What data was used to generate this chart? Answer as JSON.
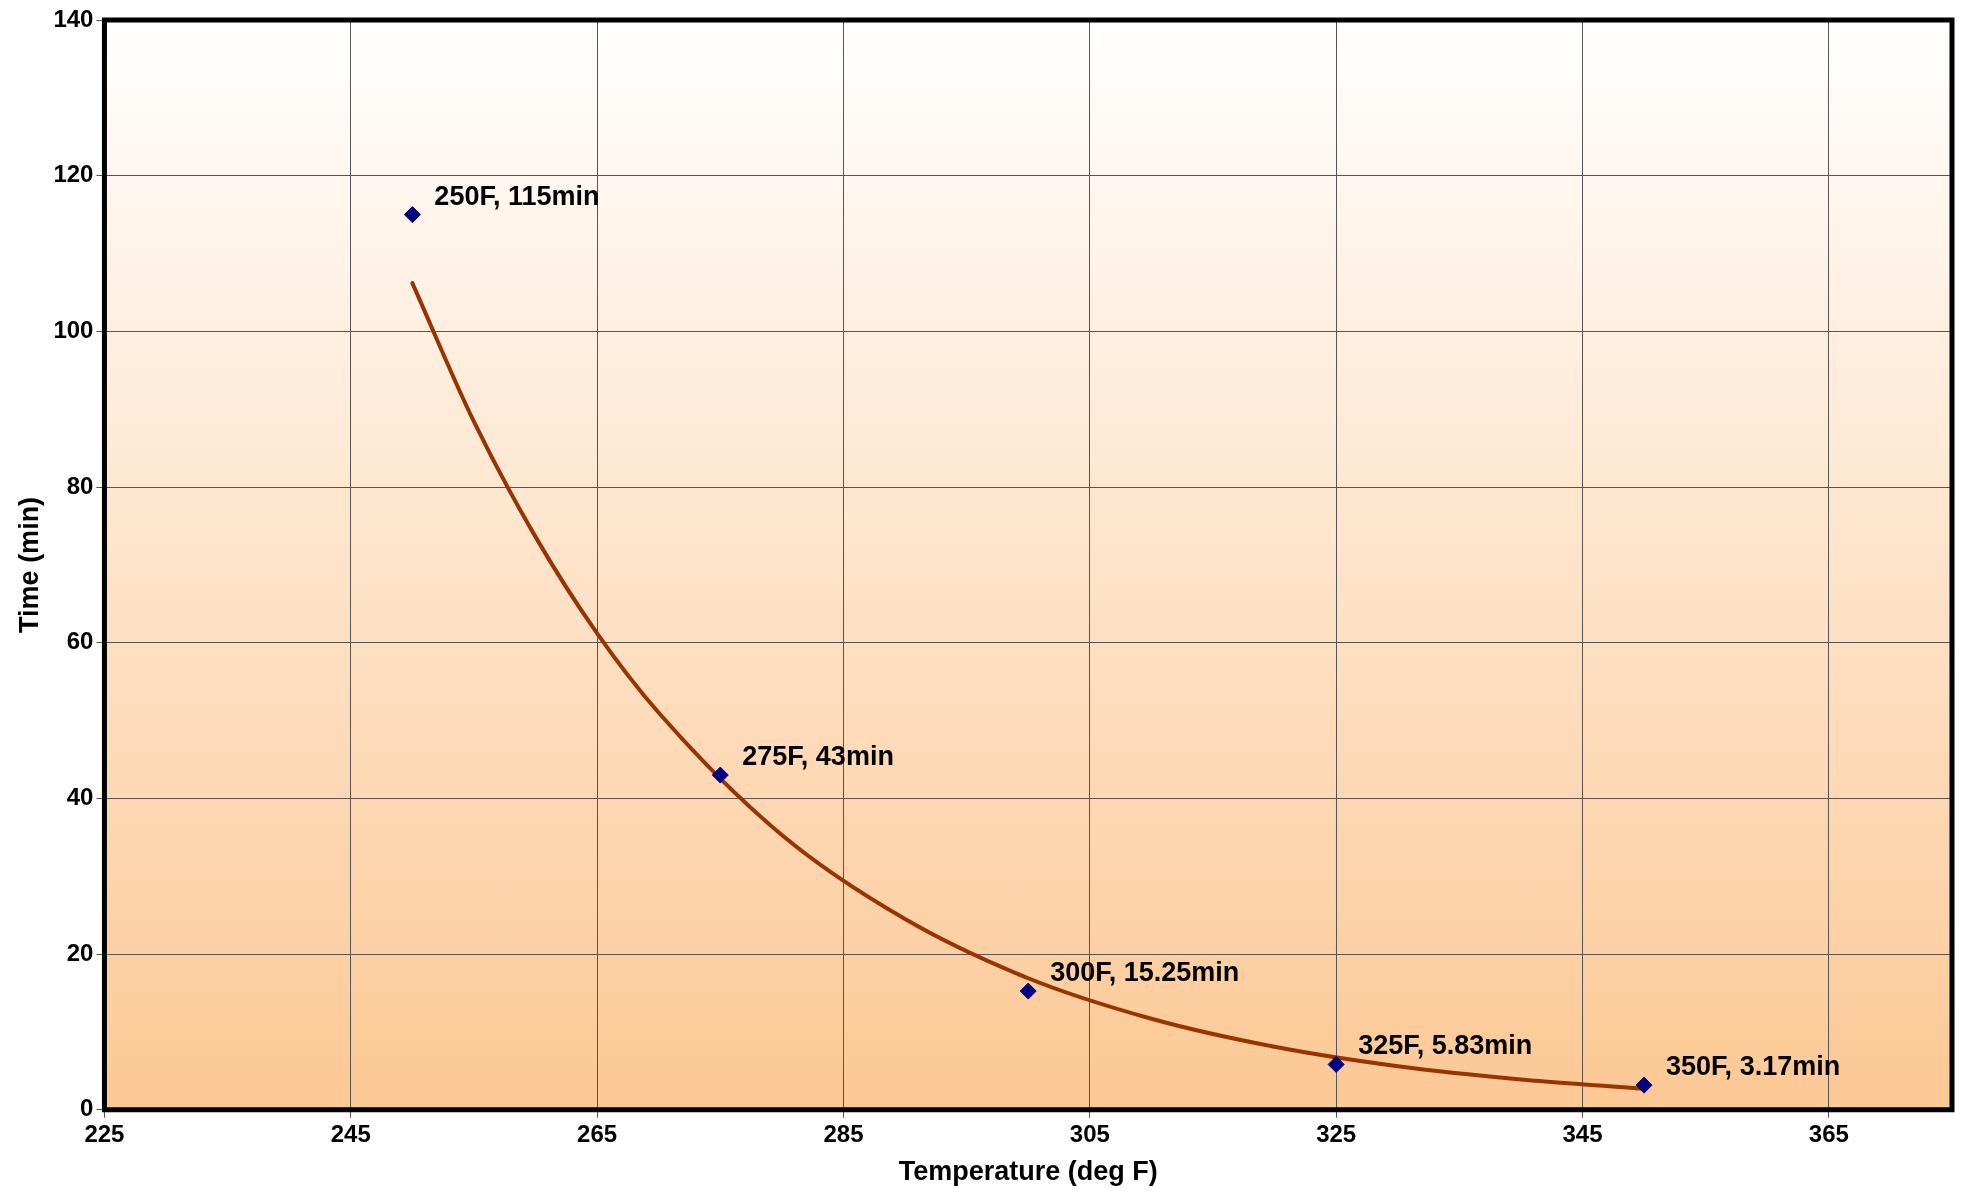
{
  "chart_data": {
    "type": "scatter",
    "xlabel": "Temperature (deg F)",
    "ylabel": "Time (min)",
    "xlim": [
      225,
      375
    ],
    "xticks": [
      225,
      245,
      265,
      285,
      305,
      325,
      345,
      365
    ],
    "ylim": [
      0,
      140
    ],
    "yticks": [
      0,
      20,
      40,
      60,
      80,
      100,
      120,
      140
    ],
    "grid": true,
    "legend": false,
    "series": [
      {
        "type": "scatter",
        "color": "#000080",
        "marker": "diamond",
        "x": [
          250,
          275,
          300,
          325,
          350
        ],
        "values": [
          115,
          43,
          15.25,
          5.83,
          3.17
        ]
      },
      {
        "type": "line",
        "color": "#993300",
        "marker": "none",
        "line_style": "solid",
        "x": [
          250,
          255,
          260,
          265,
          270,
          280,
          290,
          300,
          310,
          320,
          330,
          340,
          350
        ],
        "values": [
          106.2,
          88.4,
          73.6,
          61.2,
          51.0,
          35.3,
          24.5,
          16.9,
          11.7,
          8.1,
          5.6,
          3.9,
          2.7
        ]
      }
    ],
    "annotations": [
      {
        "text": "250F, 115min",
        "x": 250,
        "y": 115
      },
      {
        "text": "275F, 43min",
        "x": 275,
        "y": 43
      },
      {
        "text": "300F, 15.25min",
        "x": 300,
        "y": 15.25
      },
      {
        "text": "325F, 5.83min",
        "x": 325,
        "y": 5.83
      },
      {
        "text": "350F, 3.17min",
        "x": 350,
        "y": 3.17
      }
    ]
  }
}
